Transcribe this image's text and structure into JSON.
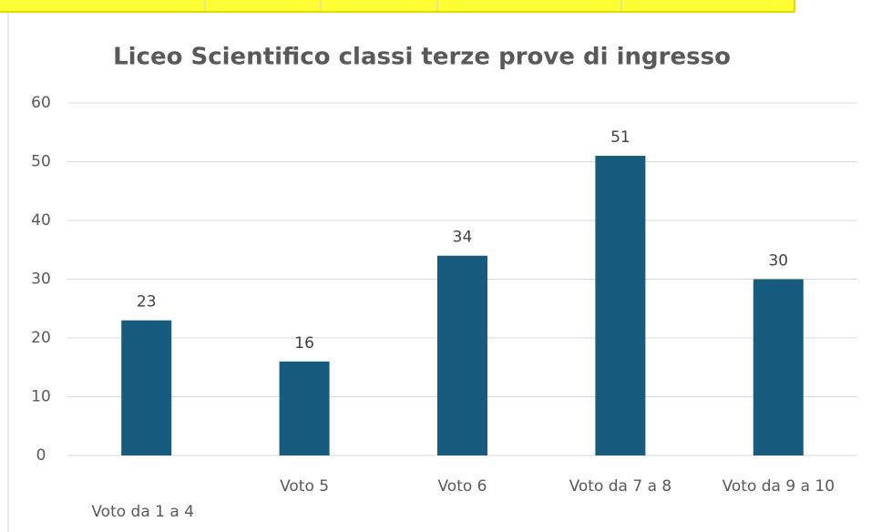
{
  "chart_data": {
    "type": "bar",
    "title": "Liceo Scientifico classi terze prove di ingresso",
    "categories": [
      "Voto da 1 a 4",
      "Voto 5",
      "Voto 6",
      "Voto da 7 a 8",
      "Voto da 9 a 10"
    ],
    "values": [
      23,
      16,
      34,
      51,
      30
    ],
    "color": "#175c7e",
    "ylim": [
      0,
      60
    ],
    "yticks": [
      0,
      10,
      20,
      30,
      40,
      50,
      60
    ],
    "grid": true
  }
}
